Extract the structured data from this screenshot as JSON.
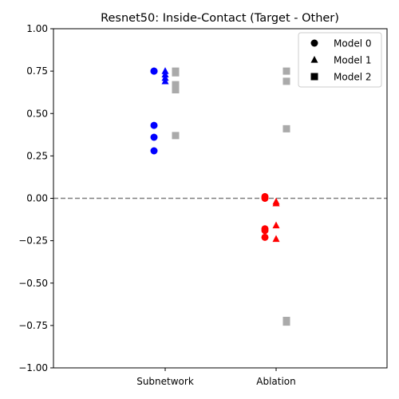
{
  "chart_data": {
    "type": "scatter",
    "title": "Resnet50: Inside-Contact (Target - Other)",
    "xlabel": "",
    "ylabel": "",
    "categories": [
      "Subnetwork",
      "Ablation"
    ],
    "ylim": [
      -1.0,
      1.0
    ],
    "yticks": [
      -1.0,
      -0.75,
      -0.5,
      -0.25,
      0.0,
      0.25,
      0.5,
      0.75,
      1.0
    ],
    "ytick_labels": [
      "−1.00",
      "−0.75",
      "−0.50",
      "−0.25",
      "0.00",
      "0.25",
      "0.50",
      "0.75",
      "1.00"
    ],
    "reference_line": {
      "y": 0.0,
      "style": "dashed",
      "color": "#808080"
    },
    "grid": false,
    "legend_position": "top-right",
    "legend": [
      {
        "label": "Model 0",
        "marker": "circle"
      },
      {
        "label": "Model 1",
        "marker": "triangle"
      },
      {
        "label": "Model 2",
        "marker": "square"
      }
    ],
    "series": [
      {
        "name": "Model 0",
        "marker": "circle",
        "category": "Subnetwork",
        "color": "#0000ff",
        "values": [
          0.75,
          0.75,
          0.43,
          0.36,
          0.28
        ]
      },
      {
        "name": "Model 1",
        "marker": "triangle",
        "category": "Subnetwork",
        "color": "#0000ff",
        "values": [
          0.75,
          0.73,
          0.71,
          0.69
        ]
      },
      {
        "name": "Model 2",
        "marker": "square",
        "category": "Subnetwork",
        "color": "#aaaaaa",
        "values": [
          0.75,
          0.74,
          0.67,
          0.66,
          0.64,
          0.37
        ]
      },
      {
        "name": "Model 0",
        "marker": "circle",
        "category": "Ablation",
        "color": "#ff0000",
        "values": [
          0.01,
          0.0,
          -0.18,
          -0.19,
          -0.23
        ]
      },
      {
        "name": "Model 1",
        "marker": "triangle",
        "category": "Ablation",
        "color": "#ff0000",
        "values": [
          -0.02,
          -0.03,
          -0.16,
          -0.24
        ]
      },
      {
        "name": "Model 2",
        "marker": "square",
        "category": "Ablation",
        "color": "#aaaaaa",
        "values": [
          0.75,
          0.69,
          0.41,
          -0.72,
          -0.73
        ]
      }
    ]
  }
}
